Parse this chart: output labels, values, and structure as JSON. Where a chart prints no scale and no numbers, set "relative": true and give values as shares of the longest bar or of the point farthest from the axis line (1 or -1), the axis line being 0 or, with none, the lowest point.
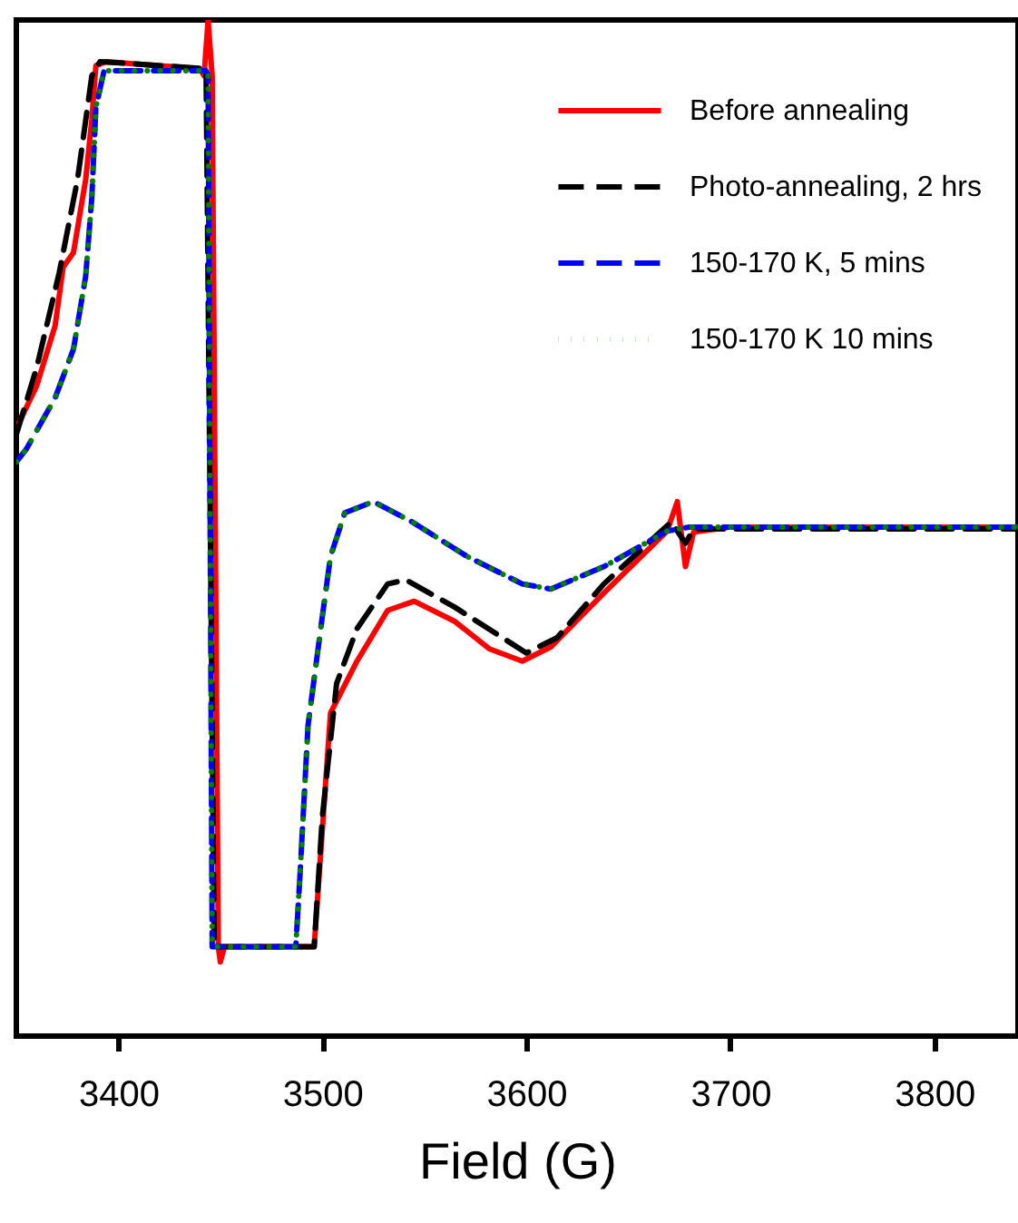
{
  "chart_data": {
    "type": "line",
    "relative": true,
    "xlabel": "Field (G)",
    "xlim": [
      3350,
      3841
    ],
    "xticks": [
      3400,
      3500,
      3600,
      3700,
      3800
    ],
    "legend": "top right",
    "grid": false,
    "series": [
      {
        "name": "Before annealing",
        "color": "#ff0000",
        "line_style": "solid",
        "x": [
          3350,
          3360,
          3369,
          3373,
          3378,
          3384,
          3387,
          3389,
          3394,
          3440,
          3442,
          3444,
          3446,
          3449,
          3450,
          3452,
          3496,
          3504,
          3517,
          3532,
          3545,
          3565,
          3582,
          3598,
          3612,
          3638,
          3669,
          3674,
          3678,
          3682,
          3700,
          3841
        ],
        "values": [
          0.598,
          0.64,
          0.699,
          0.757,
          0.771,
          0.843,
          0.902,
          0.955,
          0.959,
          0.952,
          0.945,
          1.0,
          0.945,
          0.088,
          0.073,
          0.088,
          0.088,
          0.318,
          0.369,
          0.419,
          0.428,
          0.408,
          0.381,
          0.369,
          0.383,
          0.436,
          0.497,
          0.526,
          0.462,
          0.496,
          0.501,
          0.501
        ]
      },
      {
        "name": "Photo-annealing, 2 hrs",
        "color": "#000000",
        "line_style": "dashed",
        "x": [
          3350,
          3360,
          3371,
          3380,
          3387,
          3391,
          3443,
          3447,
          3496,
          3500,
          3507,
          3517,
          3532,
          3541,
          3565,
          3600,
          3615,
          3638,
          3671,
          3678,
          3682,
          3841
        ],
        "values": [
          0.592,
          0.658,
          0.751,
          0.843,
          0.945,
          0.959,
          0.952,
          0.088,
          0.088,
          0.216,
          0.347,
          0.401,
          0.445,
          0.449,
          0.422,
          0.377,
          0.392,
          0.445,
          0.506,
          0.485,
          0.499,
          0.499
        ]
      },
      {
        "name": "150-170 K, 5 mins",
        "color": "#0000ff",
        "line_style": "dashed",
        "x": [
          3350,
          3355,
          3369,
          3378,
          3384,
          3387,
          3389,
          3393,
          3443,
          3444,
          3446,
          3487,
          3489,
          3493,
          3500,
          3504,
          3511,
          3525,
          3544,
          3571,
          3598,
          3612,
          3638,
          3669,
          3680,
          3841
        ],
        "values": [
          0.565,
          0.578,
          0.628,
          0.676,
          0.748,
          0.825,
          0.914,
          0.95,
          0.95,
          0.945,
          0.088,
          0.088,
          0.157,
          0.306,
          0.413,
          0.472,
          0.515,
          0.526,
          0.506,
          0.472,
          0.445,
          0.44,
          0.462,
          0.497,
          0.501,
          0.501
        ]
      },
      {
        "name": "150-170 K 10 mins",
        "color": "#008000",
        "line_style": "dotted",
        "x": [
          3350,
          3355,
          3369,
          3378,
          3384,
          3387,
          3389,
          3393,
          3443,
          3444,
          3446,
          3487,
          3489,
          3493,
          3500,
          3504,
          3511,
          3525,
          3544,
          3571,
          3598,
          3612,
          3638,
          3669,
          3680,
          3841
        ],
        "values": [
          0.565,
          0.578,
          0.628,
          0.676,
          0.748,
          0.825,
          0.914,
          0.95,
          0.95,
          0.945,
          0.088,
          0.088,
          0.157,
          0.306,
          0.413,
          0.472,
          0.515,
          0.526,
          0.506,
          0.472,
          0.445,
          0.44,
          0.462,
          0.497,
          0.501,
          0.501
        ]
      }
    ]
  }
}
